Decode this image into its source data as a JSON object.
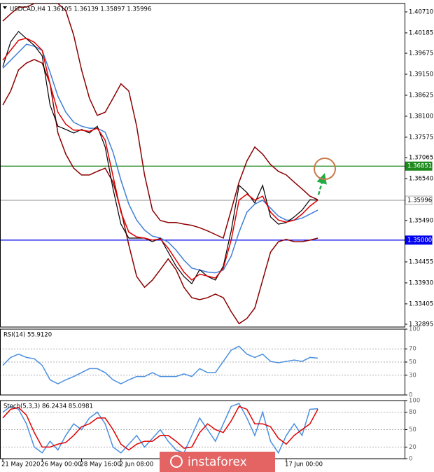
{
  "chart_data": [
    {
      "type": "line",
      "title": "USDCAD,H4  1.36105 1.36139 1.35897 1.35996",
      "ylim": [
        1.32825,
        1.4092
      ],
      "yticks": [
        {
          "value": 1.4071,
          "label": "1.40710"
        },
        {
          "value": 1.40185,
          "label": "1.40185"
        },
        {
          "value": 1.39675,
          "label": "1.39675"
        },
        {
          "value": 1.3915,
          "label": "1.39150"
        },
        {
          "value": 1.38625,
          "label": "1.38625"
        },
        {
          "value": 1.381,
          "label": "1.38100"
        },
        {
          "value": 1.37575,
          "label": "1.37575"
        },
        {
          "value": 1.37065,
          "label": "1.37065"
        },
        {
          "value": 1.3654,
          "label": "1.36540"
        },
        {
          "value": 1.3549,
          "label": "1.35490"
        },
        {
          "value": 1.34455,
          "label": "1.34455"
        },
        {
          "value": 1.3393,
          "label": "1.33930"
        },
        {
          "value": 1.33405,
          "label": "1.33405"
        },
        {
          "value": 1.32895,
          "label": "1.32895"
        }
      ],
      "grid": false,
      "hlines": [
        {
          "value": 1.36851,
          "label": "1.36851",
          "color": "#1e8a1e",
          "label_fill": "#1e8a1e",
          "label_color": "#ffffff"
        },
        {
          "value": 1.35,
          "label": "1.35000",
          "color": "#0000ee",
          "label_fill": "#0000ee",
          "label_color": "#ffffff"
        },
        {
          "value": 1.35996,
          "label": "1.35996",
          "color": "#a8a8a8",
          "label_fill": "#ffffff",
          "label_color": "#000000"
        }
      ],
      "series": [
        {
          "color": "#8b0000",
          "values": [
            1.4048,
            1.4066,
            1.4083,
            1.4083,
            1.4092,
            1.4092,
            1.4092,
            1.4092,
            1.4074,
            1.4013,
            1.3926,
            1.3855,
            1.3812,
            1.382,
            1.3855,
            1.3891,
            1.3873,
            1.3785,
            1.3663,
            1.3575,
            1.3549,
            1.3544,
            1.3544,
            1.354,
            1.3537,
            1.3531,
            1.3523,
            1.3514,
            1.3505,
            1.3575,
            1.3645,
            1.3698,
            1.3733,
            1.3715,
            1.3689,
            1.3672,
            1.3663,
            1.3645,
            1.3628,
            1.361,
            1.3601
          ]
        },
        {
          "color": "#8b0000",
          "values": [
            1.3838,
            1.3873,
            1.3926,
            1.3943,
            1.3952,
            1.3943,
            1.3891,
            1.3768,
            1.3715,
            1.368,
            1.3663,
            1.3663,
            1.3672,
            1.368,
            1.3645,
            1.3575,
            1.3488,
            1.3409,
            1.3382,
            1.34,
            1.3426,
            1.3453,
            1.3426,
            1.3382,
            1.3356,
            1.3351,
            1.3356,
            1.3365,
            1.3356,
            1.3321,
            1.3291,
            1.3304,
            1.333,
            1.34,
            1.347,
            1.3496,
            1.3502,
            1.3496,
            1.3496,
            1.35,
            1.3505
          ]
        },
        {
          "color": "#3f7fd9",
          "values": [
            1.393,
            1.395,
            1.397,
            1.399,
            1.3985,
            1.3975,
            1.392,
            1.386,
            1.382,
            1.3795,
            1.3785,
            1.378,
            1.378,
            1.377,
            1.372,
            1.365,
            1.359,
            1.355,
            1.3525,
            1.351,
            1.3505,
            1.3495,
            1.3475,
            1.345,
            1.343,
            1.3425,
            1.342,
            1.3418,
            1.3425,
            1.346,
            1.352,
            1.357,
            1.359,
            1.36,
            1.358,
            1.356,
            1.355,
            1.355,
            1.3555,
            1.3565,
            1.3575
          ]
        },
        {
          "color": "#000000",
          "values": [
            1.3934,
            1.3996,
            1.4022,
            1.4004,
            1.3987,
            1.3961,
            1.3838,
            1.3785,
            1.3777,
            1.3768,
            1.3777,
            1.3768,
            1.3785,
            1.3733,
            1.3628,
            1.354,
            1.3505,
            1.3505,
            1.3505,
            1.3496,
            1.3505,
            1.347,
            1.3435,
            1.3409,
            1.3391,
            1.3426,
            1.3409,
            1.34,
            1.3435,
            1.3523,
            1.3637,
            1.3619,
            1.3593,
            1.3637,
            1.3558,
            1.354,
            1.3544,
            1.3558,
            1.3575,
            1.3601,
            1.36
          ]
        },
        {
          "color": "#e00000",
          "values": [
            1.395,
            1.3975,
            1.4,
            1.4005,
            1.3995,
            1.3975,
            1.389,
            1.382,
            1.379,
            1.3775,
            1.3775,
            1.3772,
            1.378,
            1.375,
            1.366,
            1.357,
            1.352,
            1.3508,
            1.3505,
            1.35,
            1.3503,
            1.348,
            1.345,
            1.342,
            1.34,
            1.3415,
            1.341,
            1.3405,
            1.343,
            1.35,
            1.36,
            1.3615,
            1.36,
            1.361,
            1.357,
            1.355,
            1.3545,
            1.355,
            1.3565,
            1.3585,
            1.36
          ]
        }
      ]
    },
    {
      "type": "line",
      "title": "RSI(14) 55.9120",
      "ylim": [
        0,
        100
      ],
      "yticks": [
        0,
        30,
        50,
        70,
        100
      ],
      "grid": true,
      "series": [
        {
          "color": "#4a8fe0",
          "values": [
            45,
            57,
            62,
            57,
            55,
            45,
            23,
            17,
            23,
            28,
            34,
            40,
            40,
            34,
            23,
            17,
            23,
            28,
            28,
            34,
            28,
            28,
            28,
            32,
            28,
            40,
            34,
            34,
            51,
            68,
            74,
            62,
            57,
            62,
            51,
            49,
            51,
            53,
            51,
            57,
            56
          ]
        }
      ]
    },
    {
      "type": "line",
      "title": "Stoch(5,3,3) 86.2434 85.0981",
      "ylim": [
        0,
        100
      ],
      "yticks": [
        0,
        20,
        50,
        80,
        100
      ],
      "grid": true,
      "categories": [
        "21 May 2020",
        null,
        null,
        null,
        null,
        "26 May 00:00",
        null,
        null,
        null,
        null,
        "28 May 16:00",
        null,
        null,
        null,
        null,
        "2 Jun 08:00",
        null,
        null,
        null,
        null,
        null,
        null,
        null,
        null,
        null,
        null,
        null,
        null,
        null,
        null,
        null,
        null,
        null,
        null,
        null,
        null,
        "17 Jun 00:00",
        null,
        null,
        null,
        null
      ],
      "series": [
        {
          "color": "#4a8fe0",
          "values": [
            80,
            90,
            85,
            60,
            20,
            10,
            30,
            15,
            40,
            60,
            50,
            70,
            80,
            60,
            20,
            10,
            25,
            40,
            20,
            35,
            50,
            30,
            15,
            10,
            40,
            70,
            50,
            30,
            60,
            90,
            95,
            70,
            40,
            80,
            30,
            10,
            40,
            60,
            40,
            85,
            86
          ]
        },
        {
          "color": "#e00000",
          "values": [
            70,
            85,
            88,
            75,
            45,
            20,
            20,
            25,
            28,
            40,
            55,
            60,
            70,
            70,
            50,
            25,
            15,
            25,
            30,
            30,
            40,
            40,
            30,
            18,
            20,
            45,
            60,
            50,
            45,
            65,
            90,
            85,
            60,
            60,
            55,
            35,
            25,
            40,
            50,
            60,
            85
          ]
        }
      ]
    }
  ],
  "watermark": "instaforex"
}
